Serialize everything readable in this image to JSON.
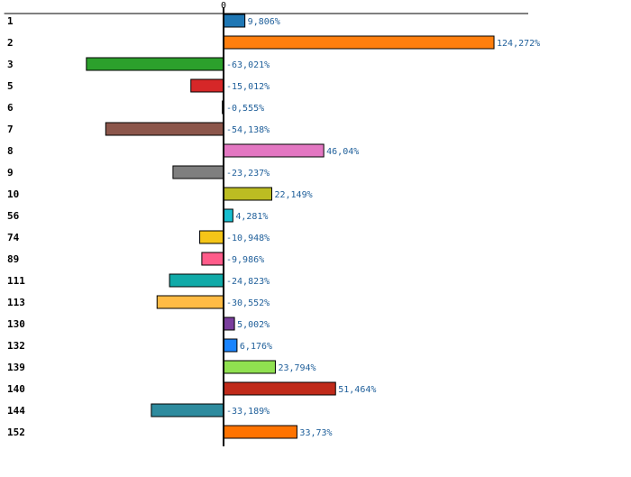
{
  "chart_data": {
    "type": "bar",
    "orientation": "horizontal",
    "title": "",
    "xlabel": "",
    "ylabel": "",
    "xlim": [
      -100.8,
      140
    ],
    "zero_tick_label": "0",
    "categories": [
      "1",
      "2",
      "3",
      "5",
      "6",
      "7",
      "8",
      "9",
      "10",
      "56",
      "74",
      "89",
      "111",
      "113",
      "130",
      "132",
      "139",
      "140",
      "144",
      "152"
    ],
    "values": [
      9.806,
      124.272,
      -63.021,
      -15.012,
      -0.555,
      -54.138,
      46.04,
      -23.237,
      22.149,
      4.281,
      -10.948,
      -9.986,
      -24.823,
      -30.552,
      5.002,
      6.176,
      23.794,
      51.464,
      -33.189,
      33.73
    ],
    "value_labels": [
      "9,806%",
      "124,272%",
      "-63,021%",
      "-15,012%",
      "-0,555%",
      "-54,138%",
      "46,04%",
      "-23,237%",
      "22,149%",
      "4,281%",
      "-10,948%",
      "-9,986%",
      "-24,823%",
      "-30,552%",
      "5,002%",
      "6,176%",
      "23,794%",
      "51,464%",
      "-33,189%",
      "33,73%"
    ],
    "colors": [
      "#1f77b4",
      "#ff7f0e",
      "#2ca02c",
      "#d62728",
      "#9467bd",
      "#8c564b",
      "#e377c2",
      "#7f7f7f",
      "#bcbd22",
      "#17becf",
      "#f5c518",
      "#ff5c8a",
      "#11aaa8",
      "#ffbb44",
      "#7a3e9d",
      "#1a85ff",
      "#90e050",
      "#c02a1a",
      "#2e8b9e",
      "#ff7300"
    ],
    "grid": false,
    "legend": "none"
  }
}
